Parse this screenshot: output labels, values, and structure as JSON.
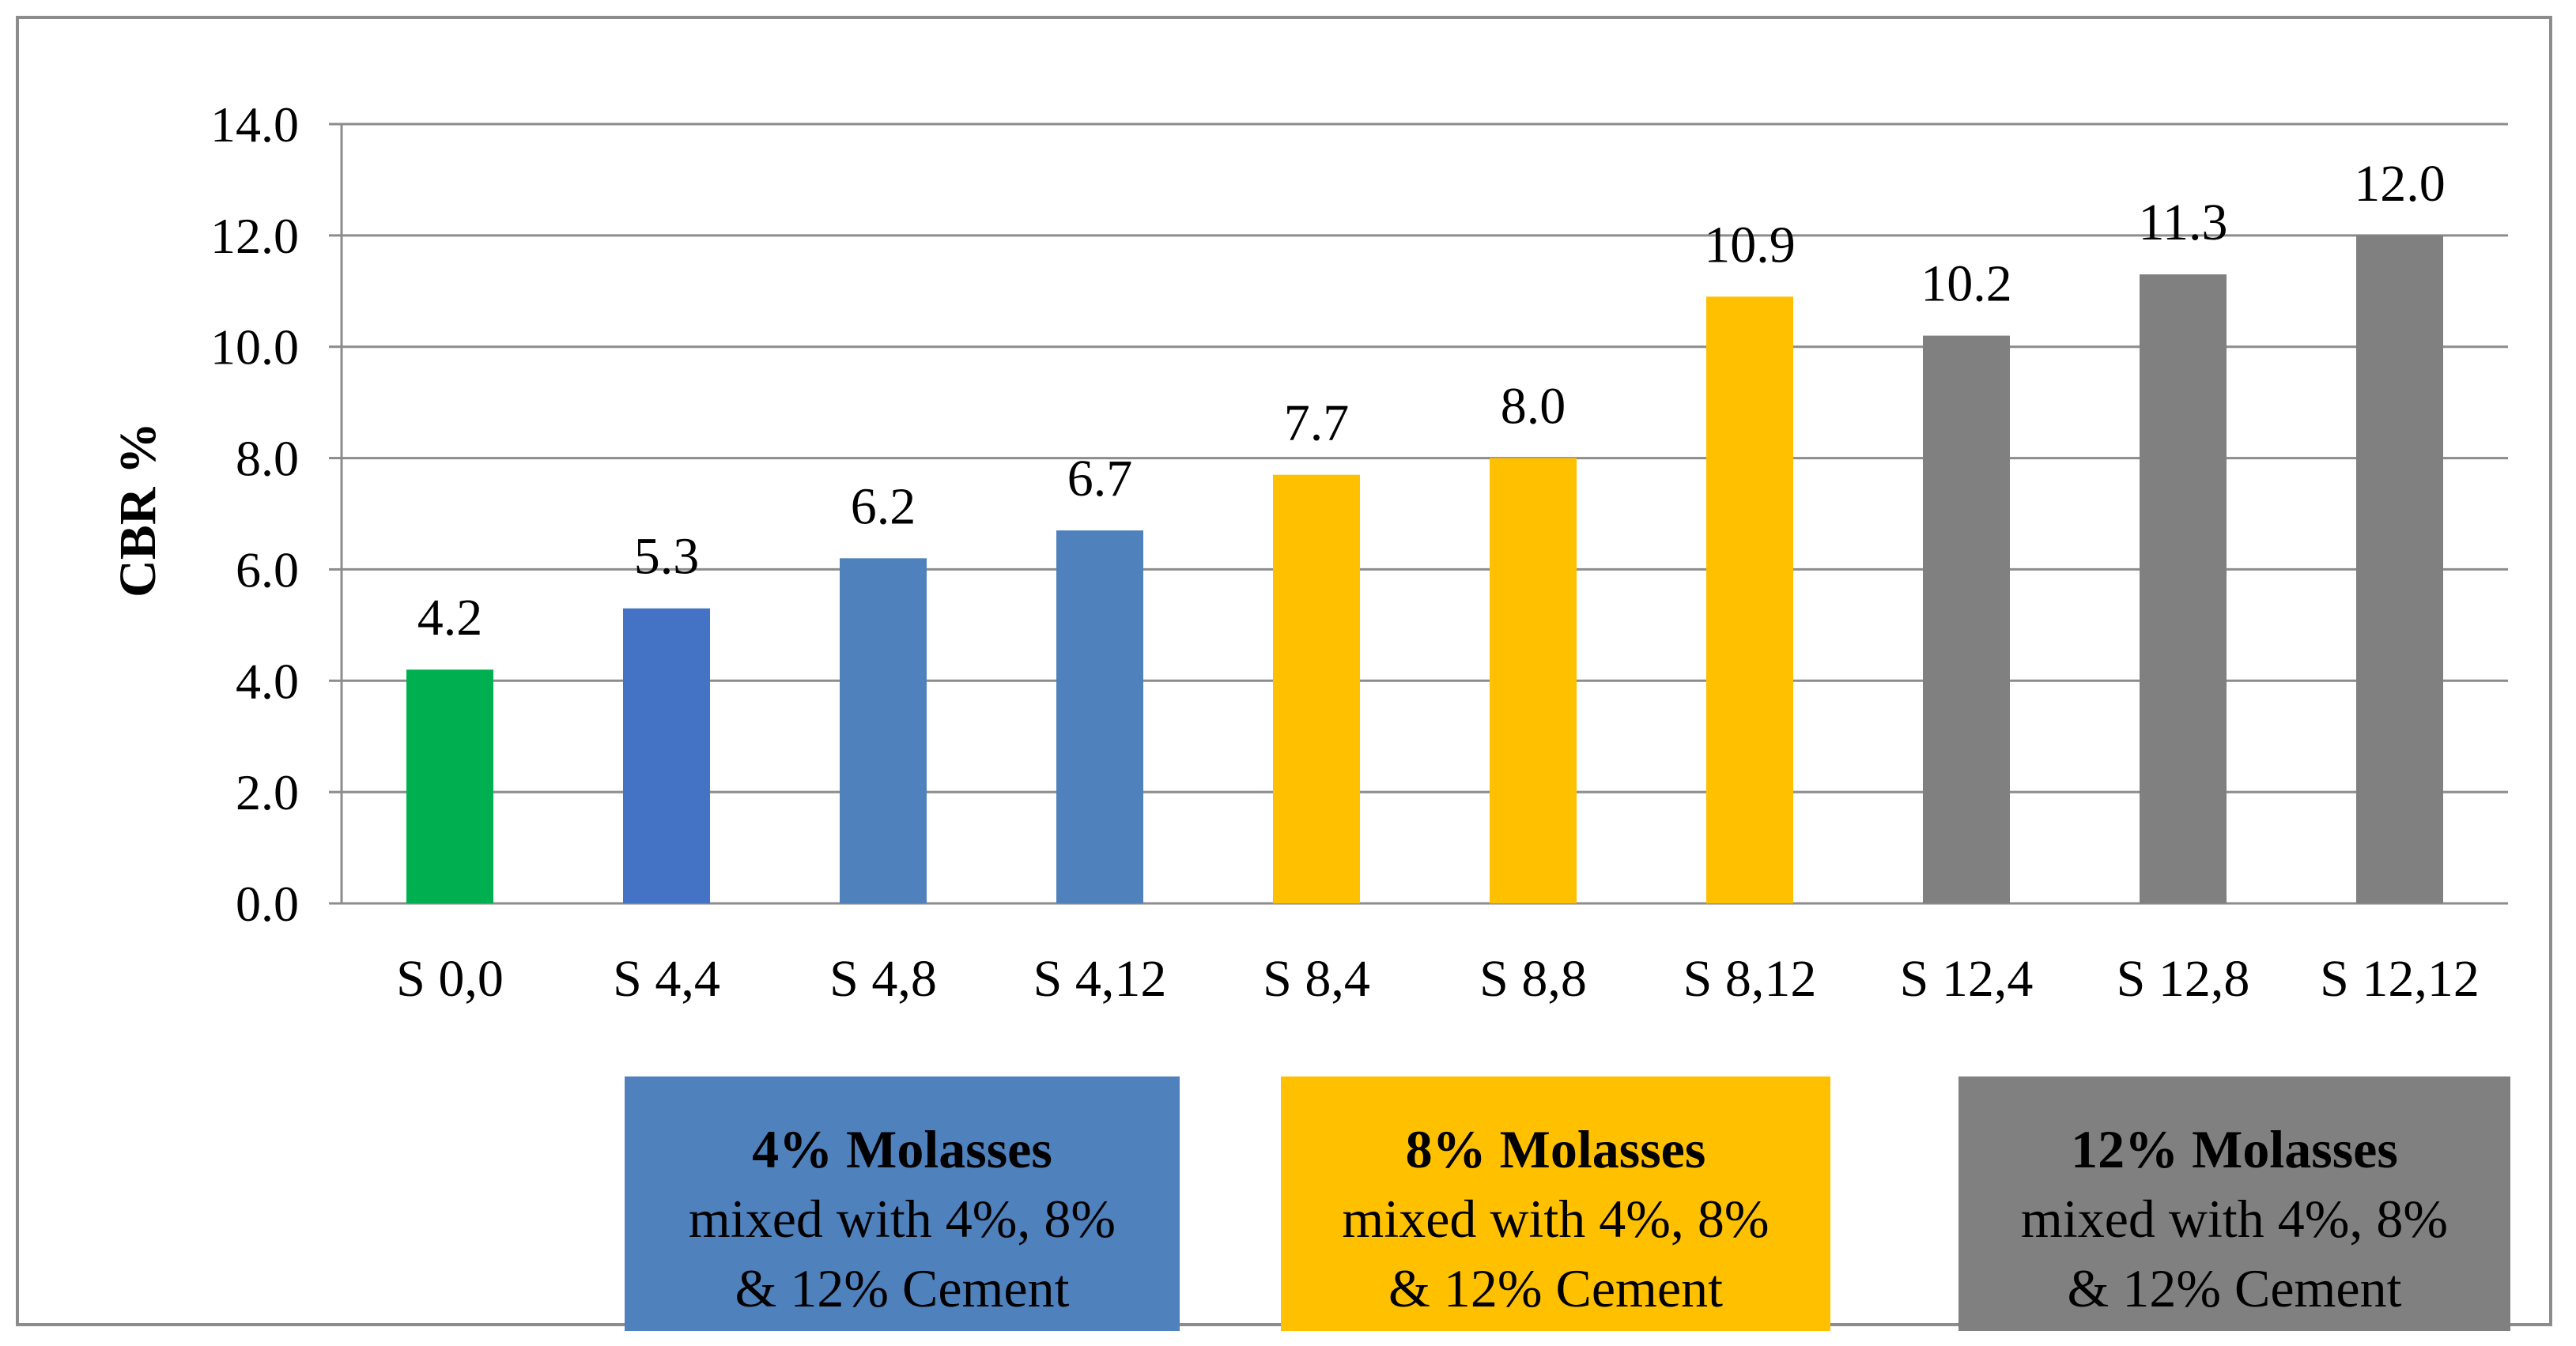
{
  "chart_data": {
    "type": "bar",
    "title": "",
    "xlabel": "",
    "ylabel": "CBR  %",
    "ylim": [
      0,
      14
    ],
    "yticks": [
      "0.0",
      "2.0",
      "4.0",
      "6.0",
      "8.0",
      "10.0",
      "12.0",
      "14.0"
    ],
    "grid": true,
    "categories": [
      "S 0,0",
      "S 4,4",
      "S 4,8",
      "S 4,12",
      "S 8,4",
      "S 8,8",
      "S 8,12",
      "S 12,4",
      "S 12,8",
      "S 12,12"
    ],
    "values": [
      4.2,
      5.3,
      6.2,
      6.7,
      7.7,
      8.0,
      10.9,
      10.2,
      11.3,
      12.0
    ],
    "data_labels": [
      "4.2",
      "5.3",
      "6.2",
      "6.7",
      "7.7",
      "8.0",
      "10.9",
      "10.2",
      "11.3",
      "12.0"
    ],
    "colors": [
      "#00b050",
      "#4472c4",
      "#4f81bd",
      "#4f81bd",
      "#ffc000",
      "#ffc000",
      "#ffc000",
      "#808080",
      "#808080",
      "#808080"
    ]
  },
  "legend": [
    {
      "bold": "4% Molasses",
      "line1": "mixed with 4%, 8%",
      "line2": "& 12% Cement",
      "color": "#4f81bd"
    },
    {
      "bold": "8% Molasses",
      "line1": "mixed with 4%, 8%",
      "line2": "& 12% Cement",
      "color": "#ffc000"
    },
    {
      "bold": "12% Molasses",
      "line1": "mixed with 4%, 8%",
      "line2": "& 12% Cement",
      "color": "#808080"
    }
  ]
}
